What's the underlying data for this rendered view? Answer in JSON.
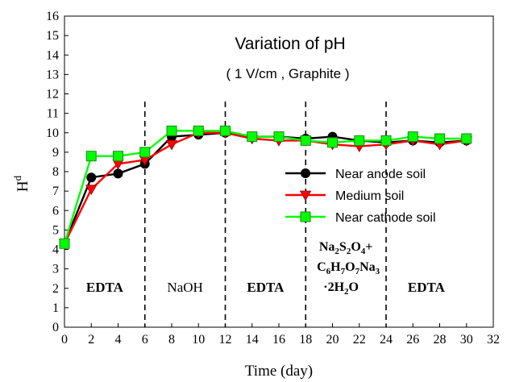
{
  "chart_data": {
    "type": "line",
    "title": "Variation of pH",
    "subtitle": "( 1 V/cm , Graphite )",
    "xlabel": "Time (day)",
    "ylabel": "H",
    "ylabel_sup": "d",
    "xlim": [
      0,
      32
    ],
    "ylim": [
      0,
      16
    ],
    "xticks": [
      "0",
      "2",
      "4",
      "6",
      "8",
      "10",
      "12",
      "14",
      "16",
      "18",
      "20",
      "22",
      "24",
      "26",
      "28",
      "30",
      "32"
    ],
    "yticks": [
      "0",
      "1",
      "2",
      "3",
      "4",
      "5",
      "6",
      "7",
      "8",
      "9",
      "10",
      "11",
      "12",
      "13",
      "14",
      "15",
      "16"
    ],
    "grid": false,
    "legend_position": "center-right",
    "x": [
      0,
      2,
      4,
      6,
      8,
      10,
      12,
      14,
      16,
      18,
      20,
      22,
      24,
      26,
      28,
      30
    ],
    "series": [
      {
        "name": "Near anode soil",
        "color": "#000000",
        "marker": "circle",
        "values": [
          4.3,
          7.7,
          7.9,
          8.4,
          9.8,
          9.9,
          10.0,
          9.8,
          9.8,
          9.7,
          9.8,
          9.6,
          9.5,
          9.6,
          9.5,
          9.6
        ]
      },
      {
        "name": "Medium soil",
        "color": "#ff0000",
        "marker": "triangle-down",
        "values": [
          4.3,
          7.1,
          8.4,
          8.6,
          9.4,
          10.0,
          10.0,
          9.7,
          9.6,
          9.6,
          9.4,
          9.3,
          9.4,
          9.6,
          9.4,
          9.6
        ]
      },
      {
        "name": "Near cathode soil",
        "color": "#00ff00",
        "marker": "square",
        "values": [
          4.3,
          8.8,
          8.8,
          9.0,
          10.1,
          10.1,
          10.1,
          9.8,
          9.8,
          9.6,
          9.5,
          9.6,
          9.6,
          9.8,
          9.7,
          9.7
        ]
      }
    ],
    "phase_dividers_x": [
      6,
      12,
      18,
      24
    ],
    "phases": [
      {
        "label": "EDTA",
        "x_center": 3
      },
      {
        "label": "NaOH",
        "x_center": 9
      },
      {
        "label": "EDTA",
        "x_center": 15
      },
      {
        "label": "Na2S2O4+ C6H7O7Na3 ·2H2O",
        "x_center": 21
      },
      {
        "label": "EDTA",
        "x_center": 27
      }
    ]
  }
}
